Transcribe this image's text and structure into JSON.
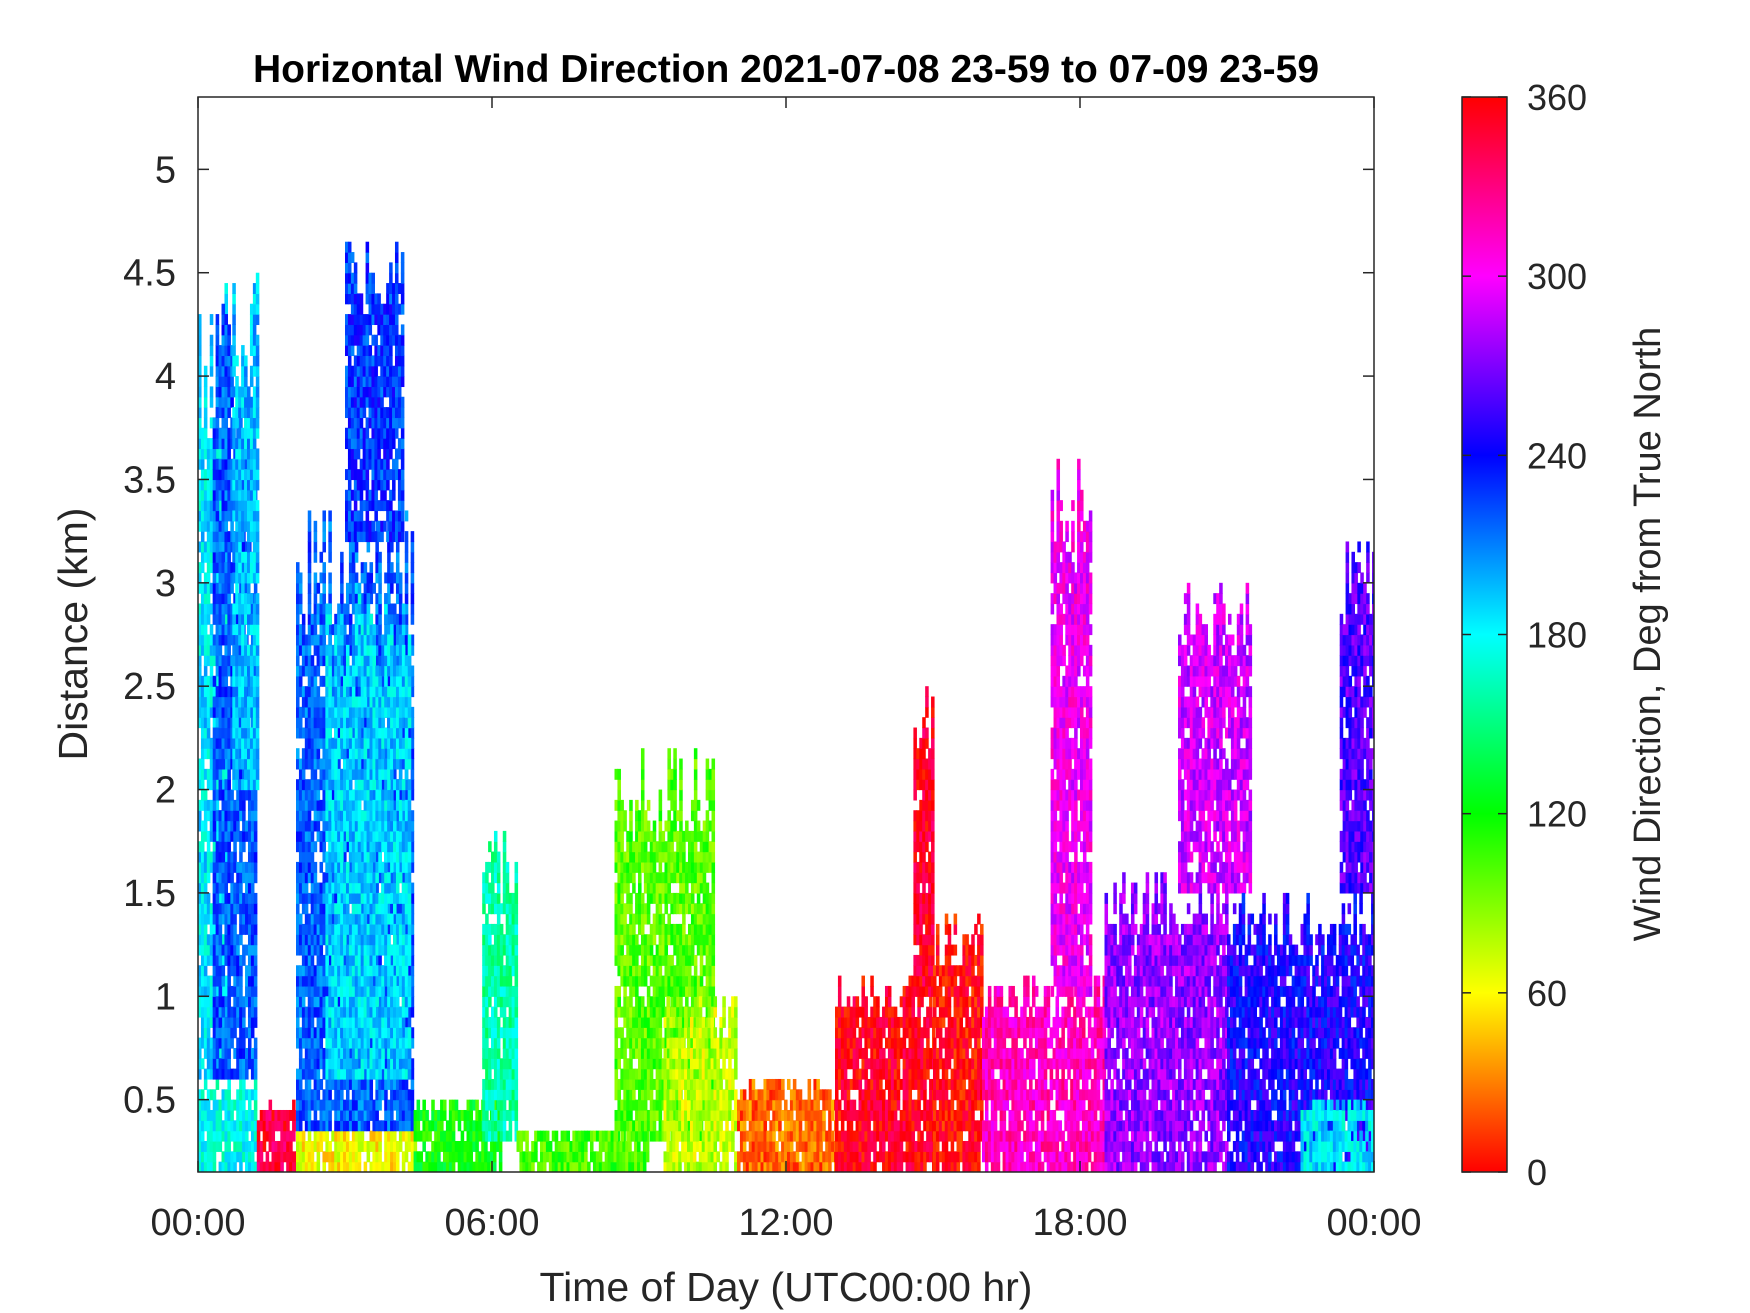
{
  "chart_data": {
    "type": "heatmap",
    "title": "Horizontal Wind Direction 2021-07-08 23-59 to 07-09 23-59",
    "xlabel": "Time of Day (UTC00:00 hr)",
    "ylabel": "Distance (km)",
    "colorbar_label": "Wind Direction, Deg from True North",
    "xlim": [
      0,
      24
    ],
    "ylim": [
      0.15,
      5.35
    ],
    "clim": [
      0,
      360
    ],
    "colormap": "hsv",
    "x_ticks": [
      0,
      6,
      12,
      18,
      24
    ],
    "x_tick_labels": [
      "00:00",
      "06:00",
      "12:00",
      "18:00",
      "00:00"
    ],
    "y_ticks": [
      0.5,
      1,
      1.5,
      2,
      2.5,
      3,
      3.5,
      4,
      4.5,
      5
    ],
    "y_tick_labels": [
      "0.5",
      "1",
      "1.5",
      "2",
      "2.5",
      "3",
      "3.5",
      "4",
      "4.5",
      "5"
    ],
    "colorbar_ticks": [
      0,
      60,
      120,
      180,
      240,
      300,
      360
    ],
    "colorbar_tick_labels": [
      "0",
      "60",
      "120",
      "180",
      "240",
      "300",
      "360"
    ],
    "grid": false,
    "regions": [
      {
        "x": [
          0.0,
          1.2
        ],
        "y": [
          0.15,
          0.6
        ],
        "deg": 175
      },
      {
        "x": [
          0.0,
          0.6
        ],
        "y": [
          0.6,
          4.6
        ],
        "deg": 185
      },
      {
        "x": [
          0.3,
          1.2
        ],
        "y": [
          0.6,
          4.4
        ],
        "deg": 220
      },
      {
        "x": [
          0.7,
          1.2
        ],
        "y": [
          2.0,
          4.5
        ],
        "deg": 195
      },
      {
        "x": [
          1.2,
          2.0
        ],
        "y": [
          0.15,
          0.5
        ],
        "deg": 345
      },
      {
        "x": [
          2.0,
          4.5
        ],
        "y": [
          0.15,
          0.35
        ],
        "deg": 60
      },
      {
        "x": [
          2.0,
          4.4
        ],
        "y": [
          0.35,
          3.4
        ],
        "deg": 218
      },
      {
        "x": [
          2.6,
          4.3
        ],
        "y": [
          0.6,
          3.0
        ],
        "deg": 190
      },
      {
        "x": [
          3.0,
          4.2
        ],
        "y": [
          3.2,
          4.7
        ],
        "deg": 228
      },
      {
        "x": [
          4.4,
          6.2
        ],
        "y": [
          0.15,
          0.5
        ],
        "deg": 120
      },
      {
        "x": [
          5.8,
          6.5
        ],
        "y": [
          0.3,
          1.8
        ],
        "deg": 160
      },
      {
        "x": [
          6.5,
          9.2
        ],
        "y": [
          0.15,
          0.35
        ],
        "deg": 105
      },
      {
        "x": [
          8.5,
          10.5
        ],
        "y": [
          0.3,
          2.2
        ],
        "deg": 100
      },
      {
        "x": [
          9.5,
          11.0
        ],
        "y": [
          0.15,
          1.0
        ],
        "deg": 75
      },
      {
        "x": [
          11.0,
          13.0
        ],
        "y": [
          0.15,
          0.6
        ],
        "deg": 25
      },
      {
        "x": [
          13.0,
          15.0
        ],
        "y": [
          0.15,
          1.1
        ],
        "deg": 355
      },
      {
        "x": [
          14.6,
          15.0
        ],
        "y": [
          1.0,
          2.5
        ],
        "deg": 350
      },
      {
        "x": [
          15.0,
          16.0
        ],
        "y": [
          0.15,
          1.4
        ],
        "deg": 0
      },
      {
        "x": [
          16.0,
          18.5
        ],
        "y": [
          0.15,
          1.1
        ],
        "deg": 315
      },
      {
        "x": [
          17.4,
          18.2
        ],
        "y": [
          1.0,
          3.6
        ],
        "deg": 300
      },
      {
        "x": [
          18.5,
          21.0
        ],
        "y": [
          0.15,
          1.6
        ],
        "deg": 275
      },
      {
        "x": [
          20.0,
          21.5
        ],
        "y": [
          1.5,
          3.0
        ],
        "deg": 290
      },
      {
        "x": [
          21.0,
          24.0
        ],
        "y": [
          0.15,
          1.5
        ],
        "deg": 245
      },
      {
        "x": [
          22.5,
          24.0
        ],
        "y": [
          0.15,
          0.5
        ],
        "deg": 185
      },
      {
        "x": [
          23.3,
          24.0
        ],
        "y": [
          1.5,
          3.2
        ],
        "deg": 260
      }
    ]
  }
}
